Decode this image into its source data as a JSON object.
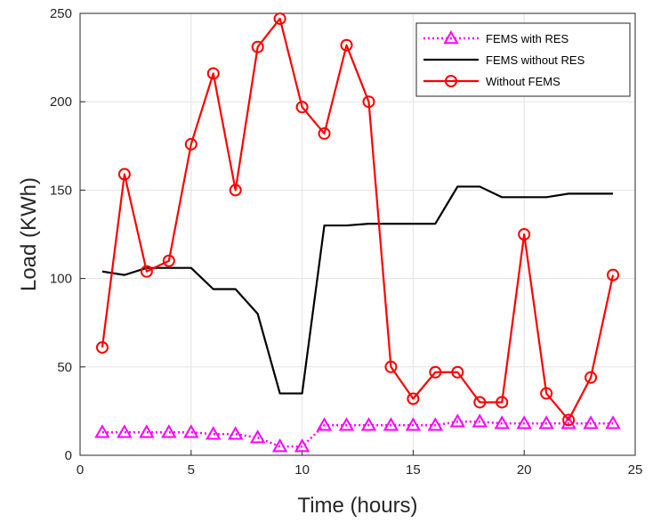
{
  "chart_data": {
    "type": "line",
    "title": "",
    "xlabel": "Time (hours)",
    "ylabel": "Load (KWh)",
    "xlim": [
      0,
      25
    ],
    "ylim": [
      0,
      250
    ],
    "x_ticks": [
      "0",
      "5",
      "10",
      "15",
      "20",
      "25"
    ],
    "y_ticks": [
      "0",
      "50",
      "100",
      "150",
      "200",
      "250"
    ],
    "grid": true,
    "legend_placement": "top-right",
    "series": [
      {
        "name": "FEMS with RES",
        "color": "#ff00ff",
        "line_style": "dotted",
        "marker": "triangle",
        "x": [
          1,
          2,
          3,
          4,
          5,
          6,
          7,
          8,
          9,
          10,
          11,
          12,
          13,
          14,
          15,
          16,
          17,
          18,
          19,
          20,
          21,
          22,
          23,
          24
        ],
        "values": [
          13,
          13,
          13,
          13,
          13,
          12,
          12,
          10,
          5,
          5,
          17,
          17,
          17,
          17,
          17,
          17,
          19,
          19,
          18,
          18,
          18,
          18,
          18,
          18
        ]
      },
      {
        "name": "FEMS without RES",
        "color": "#000000",
        "line_style": "solid",
        "marker": "none",
        "x": [
          1,
          2,
          3,
          4,
          5,
          6,
          7,
          8,
          9,
          10,
          11,
          12,
          13,
          14,
          15,
          16,
          17,
          18,
          19,
          20,
          21,
          22,
          23,
          24
        ],
        "values": [
          104,
          102,
          106,
          106,
          106,
          94,
          94,
          80,
          35,
          35,
          130,
          130,
          131,
          131,
          131,
          131,
          152,
          152,
          146,
          146,
          146,
          148,
          148,
          148
        ]
      },
      {
        "name": "Without FEMS",
        "color": "#ff0000",
        "line_style": "solid",
        "marker": "circle",
        "x": [
          1,
          2,
          3,
          4,
          5,
          6,
          7,
          8,
          9,
          10,
          11,
          12,
          13,
          14,
          15,
          16,
          17,
          18,
          19,
          20,
          21,
          22,
          23,
          24
        ],
        "values": [
          61,
          159,
          104,
          110,
          176,
          216,
          150,
          231,
          247,
          197,
          182,
          232,
          200,
          50,
          32,
          47,
          47,
          30,
          30,
          125,
          35,
          20,
          44,
          102
        ]
      }
    ]
  }
}
